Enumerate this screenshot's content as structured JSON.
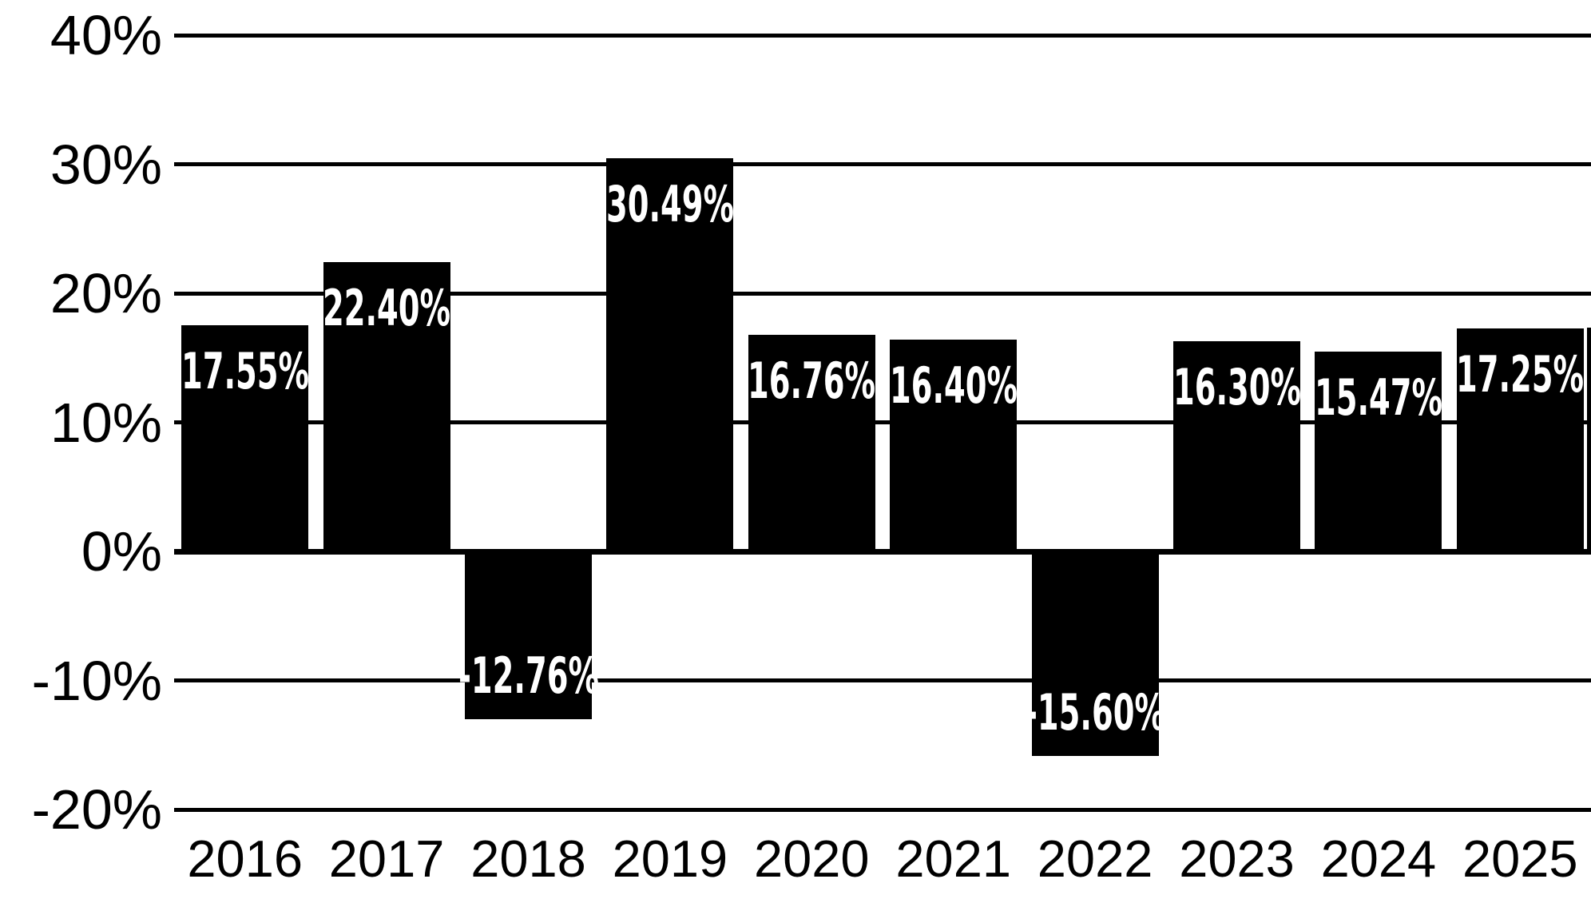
{
  "chart_data": {
    "type": "bar",
    "title": "",
    "xlabel": "",
    "ylabel": "",
    "categories": [
      "2016",
      "2017",
      "2018",
      "2019",
      "2020",
      "2021",
      "2022",
      "2023",
      "2024",
      "2025"
    ],
    "values": [
      17.55,
      22.4,
      -12.76,
      30.49,
      16.76,
      16.4,
      -15.6,
      16.3,
      15.47,
      17.25
    ],
    "bar_labels": [
      "17.55%",
      "22.40%",
      "-12.76%",
      "30.49%",
      "16.76%",
      "16.40%",
      "-15.60%",
      "16.30%",
      "15.47%",
      "17.25%"
    ],
    "y_axis": {
      "tick_labels": [
        "40%",
        "30%",
        "20%",
        "10%",
        "0%",
        "-10%",
        "-20%"
      ],
      "tick_values": [
        40,
        30,
        20,
        10,
        0,
        -10,
        -20
      ],
      "ylim": [
        -20,
        40
      ]
    },
    "partial_bar_right": {
      "visible": true,
      "approx_top_value": 17.34,
      "label": ""
    },
    "grid": "horizontal-gridlines-on",
    "legend": "none",
    "colors": {
      "bar": "#000000",
      "background": "#ffffff",
      "bar_label_text": "#ffffff",
      "axis_text": "#000000",
      "gridline": "#000000"
    }
  }
}
